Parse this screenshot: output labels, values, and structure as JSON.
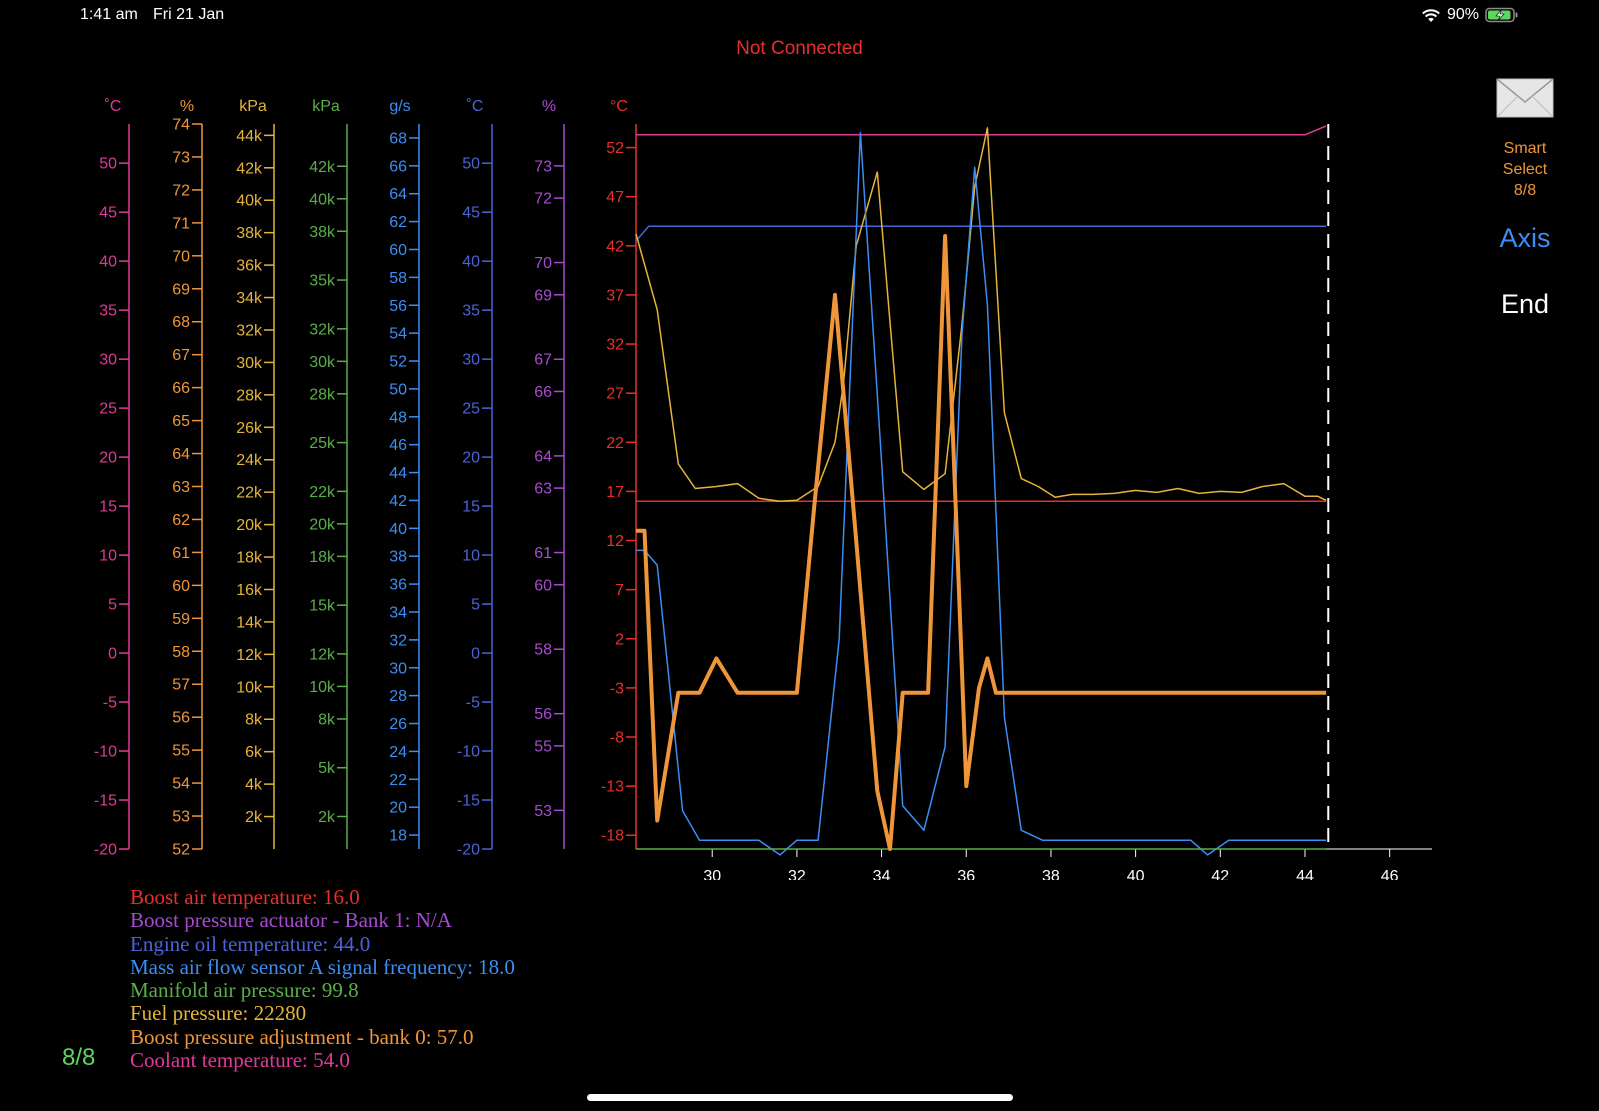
{
  "status_bar": {
    "time": "1:41 am",
    "date": "Fri 21 Jan",
    "battery": "90%"
  },
  "connection_status": "Not Connected",
  "right_panel": {
    "smart_select": [
      "Smart",
      "Select",
      "8/8"
    ],
    "axis_label": "Axis",
    "end_label": "End"
  },
  "page_indicator": "8/8",
  "colors": {
    "coolant": "#e0399a",
    "boost_adj": "#f0963a",
    "fuel": "#e6b43a",
    "manifold": "#5aae4a",
    "maf": "#3b8ef3",
    "oil": "#4c63d8",
    "actuator": "#a74bd1",
    "boost_air": "#e8302a"
  },
  "legend": [
    {
      "text": "Boost air temperature: 16.0",
      "color": "#e8302a"
    },
    {
      "text": "Boost pressure actuator  -  Bank 1: N/A",
      "color": "#a74bd1"
    },
    {
      "text": "Engine oil temperature: 44.0",
      "color": "#4c63d8"
    },
    {
      "text": "Mass air flow sensor A signal frequency: 18.0",
      "color": "#3b8ef3"
    },
    {
      "text": "Manifold air pressure: 99.8",
      "color": "#5aae4a"
    },
    {
      "text": "Fuel pressure: 22280",
      "color": "#e6b43a"
    },
    {
      "text": "Boost pressure adjustment - bank 0: 57.0",
      "color": "#f0963a"
    },
    {
      "text": "Coolant temperature: 54.0",
      "color": "#e0399a"
    }
  ],
  "chart_data": {
    "type": "line",
    "title": "",
    "xlabel": "",
    "x_ticks": [
      30,
      32,
      34,
      36,
      38,
      40,
      42,
      44,
      46
    ],
    "xlim": [
      28.2,
      47.0
    ],
    "cursor_x": 44.55,
    "primary_axis": {
      "unit": "°C",
      "ylim": [
        -19.4,
        54.4
      ],
      "ticks": [
        52,
        47,
        42,
        37,
        32,
        27,
        22,
        17,
        12,
        7,
        2,
        -3,
        -8,
        -13,
        -18
      ]
    },
    "side_axes": [
      {
        "key": "coolant",
        "unit": "˚C",
        "ylim": [
          -20,
          54
        ],
        "tick_values": [
          50,
          45,
          40,
          35,
          30,
          25,
          20,
          15,
          10,
          5,
          0,
          -5,
          -10,
          -15,
          -20
        ],
        "tick_labels": [
          "50",
          "45",
          "40",
          "35",
          "30",
          "25",
          "20",
          "15",
          "10",
          "5",
          "0",
          "-5",
          "-10",
          "-15",
          "-20"
        ]
      },
      {
        "key": "boost_adj",
        "unit": "%",
        "ylim": [
          52,
          74
        ],
        "tick_values": [
          74,
          73,
          72,
          71,
          70,
          69,
          68,
          67,
          66,
          65,
          64,
          63,
          62,
          61,
          60,
          59,
          58,
          57,
          56,
          55,
          54,
          53,
          52
        ],
        "tick_labels": [
          "74",
          "73",
          "72",
          "71",
          "70",
          "69",
          "68",
          "67",
          "66",
          "65",
          "64",
          "63",
          "62",
          "61",
          "60",
          "59",
          "58",
          "57",
          "56",
          "55",
          "54",
          "53",
          "52"
        ]
      },
      {
        "key": "fuel",
        "unit": "kPa",
        "ylim": [
          0,
          44700
        ],
        "tick_values": [
          44000,
          42000,
          40000,
          38000,
          36000,
          34000,
          32000,
          30000,
          28000,
          26000,
          24000,
          22000,
          20000,
          18000,
          16000,
          14000,
          12000,
          10000,
          8000,
          6000,
          4000,
          2000
        ],
        "tick_labels": [
          "44k",
          "42k",
          "40k",
          "38k",
          "36k",
          "34k",
          "32k",
          "30k",
          "28k",
          "26k",
          "24k",
          "22k",
          "20k",
          "18k",
          "16k",
          "14k",
          "12k",
          "10k",
          "8k",
          "6k",
          "4k",
          "2k"
        ]
      },
      {
        "key": "manifold",
        "unit": "kPa",
        "ylim": [
          0,
          44600
        ],
        "tick_values": [
          42000,
          40000,
          38000,
          35000,
          32000,
          30000,
          28000,
          25000,
          22000,
          20000,
          18000,
          15000,
          12000,
          10000,
          8000,
          5000,
          2000
        ],
        "tick_labels": [
          "42k",
          "40k",
          "38k",
          "35k",
          "32k",
          "30k",
          "28k",
          "25k",
          "22k",
          "20k",
          "18k",
          "15k",
          "12k",
          "10k",
          "8k",
          "5k",
          "2k"
        ]
      },
      {
        "key": "maf",
        "unit": "g/s",
        "ylim": [
          17,
          69
        ],
        "tick_values": [
          68,
          66,
          64,
          62,
          60,
          58,
          56,
          54,
          52,
          50,
          48,
          46,
          44,
          42,
          40,
          38,
          36,
          34,
          32,
          30,
          28,
          26,
          24,
          22,
          20,
          18
        ],
        "tick_labels": [
          "68",
          "66",
          "64",
          "62",
          "60",
          "58",
          "56",
          "54",
          "52",
          "50",
          "48",
          "46",
          "44",
          "42",
          "40",
          "38",
          "36",
          "34",
          "32",
          "30",
          "28",
          "26",
          "24",
          "22",
          "20",
          "18"
        ]
      },
      {
        "key": "oil",
        "unit": "˚C",
        "ylim": [
          -20,
          54
        ],
        "tick_values": [
          50,
          45,
          40,
          35,
          30,
          25,
          20,
          15,
          10,
          5,
          0,
          -5,
          -10,
          -15,
          -20
        ],
        "tick_labels": [
          "50",
          "45",
          "40",
          "35",
          "30",
          "25",
          "20",
          "15",
          "10",
          "5",
          "0",
          "-5",
          "-10",
          "-15",
          "-20"
        ]
      },
      {
        "key": "actuator",
        "unit": "%",
        "ylim": [
          51.8,
          74.3
        ],
        "tick_values": [
          73,
          72,
          70,
          69,
          67,
          66,
          64,
          63,
          61,
          60,
          58,
          56,
          55,
          53
        ],
        "tick_labels": [
          "73",
          "72",
          "70",
          "69",
          "67",
          "66",
          "64",
          "63",
          "61",
          "60",
          "58",
          "56",
          "55",
          "53"
        ]
      }
    ],
    "series": [
      {
        "name": "Coolant temperature",
        "color": "#e0399a",
        "stroke": 1.5,
        "scale": "primary",
        "x": [
          28.2,
          44.0,
          44.5
        ],
        "y": [
          53.3,
          53.3,
          54.2
        ]
      },
      {
        "name": "Boost air temperature",
        "color": "#e8302a",
        "stroke": 1.5,
        "scale": "primary",
        "x": [
          28.2,
          44.5
        ],
        "y": [
          16.0,
          16.0
        ]
      },
      {
        "name": "Engine oil temperature",
        "color": "#4c63d8",
        "stroke": 1.5,
        "scale": "primary",
        "x": [
          28.2,
          28.5,
          44.5
        ],
        "y": [
          42.5,
          44.0,
          44.0
        ]
      },
      {
        "name": "Fuel pressure",
        "color": "#e6b43a",
        "stroke": 1.5,
        "scale": "primary",
        "x": [
          28.2,
          28.7,
          29.2,
          29.6,
          30.1,
          30.6,
          31.1,
          31.6,
          32.0,
          32.5,
          32.9,
          33.1,
          33.4,
          33.9,
          34.5,
          35.0,
          35.5,
          35.9,
          36.2,
          36.5,
          36.9,
          37.3,
          37.7,
          38.1,
          38.5,
          39.0,
          39.5,
          40.0,
          40.5,
          41.0,
          41.5,
          42.0,
          42.5,
          43.0,
          43.5,
          44.0,
          44.3,
          44.5
        ],
        "y": [
          43.2,
          35.5,
          19.8,
          17.3,
          17.5,
          17.8,
          16.3,
          16.0,
          16.1,
          17.5,
          22.0,
          28.0,
          42.0,
          49.5,
          19.0,
          17.2,
          18.8,
          34.0,
          48.0,
          54.0,
          25.0,
          18.3,
          17.5,
          16.4,
          16.7,
          16.7,
          16.8,
          17.1,
          16.9,
          17.3,
          16.8,
          17.0,
          16.9,
          17.5,
          17.8,
          16.5,
          16.5,
          16.1
        ]
      },
      {
        "name": "Mass air flow sensor A signal frequency",
        "color": "#3b8ef3",
        "stroke": 1.5,
        "scale": "primary",
        "x": [
          28.2,
          28.4,
          28.7,
          29.3,
          29.7,
          30.1,
          30.6,
          31.1,
          31.6,
          32.0,
          32.5,
          33.0,
          33.5,
          34.0,
          34.5,
          35.0,
          35.5,
          35.9,
          36.2,
          36.5,
          36.9,
          37.3,
          37.8,
          38.3,
          38.8,
          39.3,
          39.8,
          40.3,
          40.8,
          41.3,
          41.7,
          42.2,
          42.7,
          43.2,
          43.7,
          44.2,
          44.5
        ],
        "y": [
          11.0,
          11.0,
          9.5,
          -15.5,
          -18.5,
          -18.5,
          -18.5,
          -18.5,
          -20.0,
          -18.5,
          -18.5,
          2.0,
          53.5,
          20.0,
          -15.0,
          -17.5,
          -9.0,
          33.0,
          50.0,
          36.0,
          -6.0,
          -17.5,
          -18.5,
          -18.5,
          -18.5,
          -18.5,
          -18.5,
          -18.5,
          -18.5,
          -18.5,
          -20.0,
          -18.5,
          -18.5,
          -18.5,
          -18.5,
          -18.5,
          -18.5
        ]
      },
      {
        "name": "Manifold air pressure",
        "color": "#5aae4a",
        "stroke": 1.5,
        "scale": "primary",
        "x": [
          28.2,
          44.5
        ],
        "y": [
          -19.4,
          -19.4
        ]
      },
      {
        "name": "Boost pressure adjustment - bank 0",
        "color": "#f0963a",
        "stroke": 4,
        "scale": "primary",
        "x": [
          28.2,
          28.4,
          28.7,
          29.2,
          29.7,
          30.1,
          30.6,
          31.1,
          31.6,
          32.0,
          32.4,
          32.9,
          33.4,
          33.9,
          34.2,
          34.5,
          34.8,
          35.1,
          35.5,
          35.8,
          36.0,
          36.3,
          36.5,
          36.7,
          37.0,
          37.5,
          38.0,
          38.5,
          39.0,
          39.5,
          40.0,
          40.5,
          41.0,
          41.5,
          42.0,
          42.5,
          43.0,
          43.5,
          44.0,
          44.5
        ],
        "y": [
          13.0,
          13.0,
          -16.5,
          -3.5,
          -3.5,
          0.0,
          -3.5,
          -3.5,
          -3.5,
          -3.5,
          15.0,
          37.0,
          12.0,
          -13.5,
          -19.4,
          -3.5,
          -3.5,
          -3.5,
          43.0,
          10.0,
          -13.0,
          -3.0,
          0.0,
          -3.5,
          -3.5,
          -3.5,
          -3.5,
          -3.5,
          -3.5,
          -3.5,
          -3.5,
          -3.5,
          -3.5,
          -3.5,
          -3.5,
          -3.5,
          -3.5,
          -3.5,
          -3.5,
          -3.5
        ]
      }
    ]
  }
}
